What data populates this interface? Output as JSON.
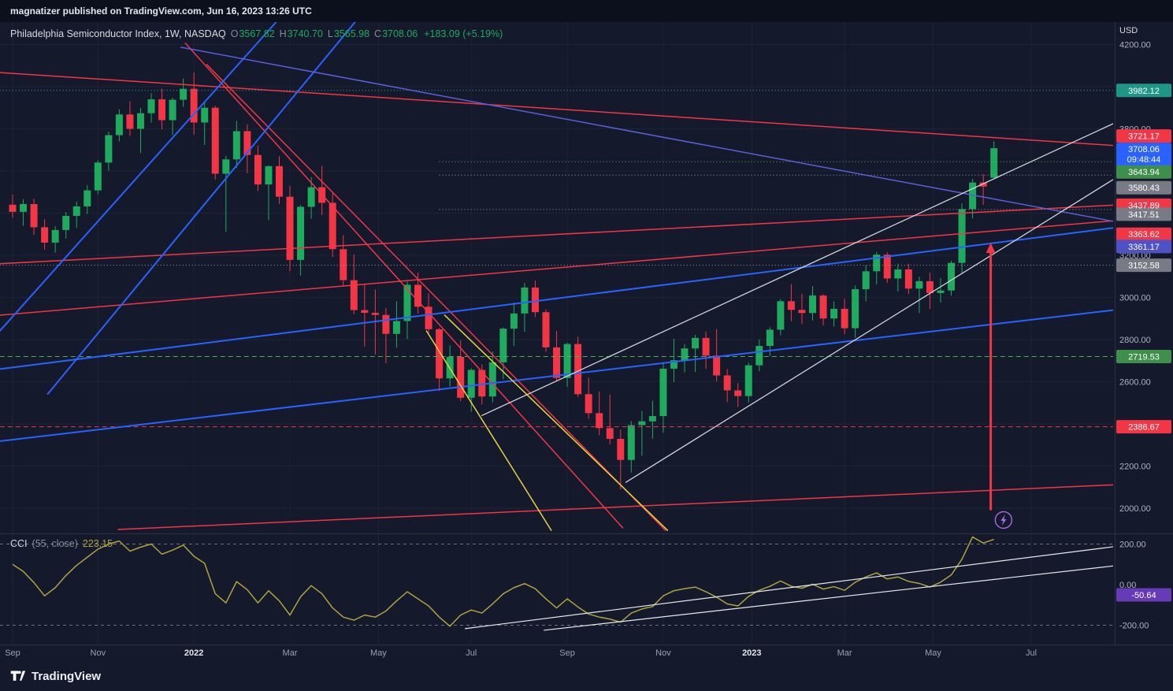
{
  "topbar": {
    "text": "magnatizer published on TradingView.com, Jun 16, 2023 13:26 UTC"
  },
  "legend": {
    "symbol": "Philadelphia Semiconductor Index, 1W, NASDAQ",
    "o_label": "O",
    "h_label": "H",
    "l_label": "L",
    "c_label": "C",
    "open": "3567.82",
    "high": "3740.70",
    "low": "3565.98",
    "close": "3708.06",
    "change": "+183.09 (+5.19%)"
  },
  "cci_legend": {
    "title": "CCI",
    "params": "(55, close)",
    "value": "223.15"
  },
  "axis": {
    "currency": "USD",
    "price_ticks": [
      4200,
      4000,
      3800,
      3600,
      3400,
      3200,
      3000,
      2800,
      2600,
      2400,
      2200,
      2000
    ],
    "time_ticks": [
      {
        "i": 0,
        "label": "Sep"
      },
      {
        "i": 8,
        "label": "Nov"
      },
      {
        "i": 17,
        "label": "2022",
        "year": true
      },
      {
        "i": 26,
        "label": "Mar"
      },
      {
        "i": 34.3,
        "label": "May"
      },
      {
        "i": 43,
        "label": "Jul"
      },
      {
        "i": 52,
        "label": "Sep"
      },
      {
        "i": 61,
        "label": "Nov"
      },
      {
        "i": 69.3,
        "label": "2023",
        "year": true
      },
      {
        "i": 78,
        "label": "Mar"
      },
      {
        "i": 86.3,
        "label": "May"
      },
      {
        "i": 95.5,
        "label": "Jul"
      }
    ],
    "cci_ticks": [
      {
        "v": 200,
        "label": "200.00"
      },
      {
        "v": 0,
        "label": "0.00"
      },
      {
        "v": -200,
        "label": "-200.00"
      }
    ]
  },
  "badges": [
    {
      "text": "3982.12",
      "price": 3982.12,
      "bg": "#1e9688"
    },
    {
      "text": "3721.17",
      "price": 3721.17,
      "bg": "#f23645",
      "dy": -12
    },
    {
      "text": "3708.06",
      "price": 3708.06,
      "bg": "#2962ff",
      "dy": 8,
      "sub": "09:48:44"
    },
    {
      "text": "3643.94",
      "price": 3643.94,
      "bg": "#3e8e4c",
      "dy": 13
    },
    {
      "text": "3580.43",
      "price": 3580.43,
      "bg": "#787b86",
      "dy": 16
    },
    {
      "text": "3437.89",
      "price": 3437.89,
      "bg": "#f23645",
      "dy": 0
    },
    {
      "text": "3417.51",
      "price": 3417.51,
      "bg": "#787b86",
      "dy": 6
    },
    {
      "text": "3363.62",
      "price": 3363.62,
      "bg": "#f23645",
      "dy": 17
    },
    {
      "text": "3361.17",
      "price": 3361.17,
      "bg": "#4f52c5",
      "dy": 32
    },
    {
      "text": "3152.58",
      "price": 3152.58,
      "bg": "#787b86",
      "dy": 0
    },
    {
      "text": "2719.53",
      "price": 2719.53,
      "bg": "#3e8e4c",
      "dy": 0
    },
    {
      "text": "2386.67",
      "price": 2386.67,
      "bg": "#f23645",
      "dy": 0
    }
  ],
  "cci_badge": {
    "text": "-50.64",
    "value": -50.64,
    "bg": "#673ab7"
  },
  "colors": {
    "bg": "#141a2b",
    "grid": "#1d2435",
    "separator": "#2a2f42",
    "axis_text": "#aeb2bd",
    "up": "#1faa5e",
    "down": "#f23645",
    "blue_line": "#2962ff",
    "red_line": "#f23645",
    "yellow_line": "#e8d33f",
    "white_line": "#d1d4dc",
    "purple_line": "#5a5fd8",
    "teal_level": "#26b0a2",
    "green_level": "#4caf50",
    "gray_level": "#9aa0ab",
    "cci_line": "#b0a23e",
    "cci_band": "#c9cbd3",
    "arrow": "#f23645",
    "zap": "#a86be0"
  },
  "footer": {
    "brand": "TradingView"
  },
  "chart_data": {
    "type": "candlestick",
    "title": "Philadelphia Semiconductor Index, 1W, NASDAQ",
    "timeframe": "1W",
    "currency": "USD",
    "last_bar": {
      "open": 3567.82,
      "high": 3740.7,
      "low": 3565.98,
      "close": 3708.06,
      "change": "+183.09 (+5.19%)"
    },
    "ylim": [
      1950,
      4300
    ],
    "grid": true,
    "candles": [
      [
        3440,
        3489,
        3377,
        3406
      ],
      [
        3406,
        3466,
        3340,
        3443
      ],
      [
        3443,
        3468,
        3297,
        3333
      ],
      [
        3333,
        3372,
        3227,
        3260
      ],
      [
        3260,
        3338,
        3212,
        3320
      ],
      [
        3320,
        3405,
        3279,
        3387
      ],
      [
        3387,
        3455,
        3330,
        3432
      ],
      [
        3432,
        3533,
        3396,
        3508
      ],
      [
        3508,
        3651,
        3490,
        3640
      ],
      [
        3640,
        3786,
        3601,
        3770
      ],
      [
        3770,
        3893,
        3740,
        3868
      ],
      [
        3868,
        3931,
        3766,
        3800
      ],
      [
        3800,
        3899,
        3685,
        3874
      ],
      [
        3874,
        3969,
        3830,
        3940
      ],
      [
        3940,
        3991,
        3797,
        3841
      ],
      [
        3841,
        3948,
        3770,
        3938
      ],
      [
        3938,
        4039,
        3905,
        3990
      ],
      [
        3990,
        4068,
        3772,
        3830
      ],
      [
        3830,
        3931,
        3724,
        3900
      ],
      [
        3900,
        3910,
        3559,
        3587
      ],
      [
        3587,
        3672,
        3311,
        3655
      ],
      [
        3655,
        3838,
        3614,
        3789
      ],
      [
        3789,
        3821,
        3589,
        3676
      ],
      [
        3676,
        3721,
        3505,
        3536
      ],
      [
        3536,
        3626,
        3367,
        3623
      ],
      [
        3623,
        3670,
        3444,
        3478
      ],
      [
        3478,
        3529,
        3124,
        3178
      ],
      [
        3178,
        3438,
        3104,
        3430
      ],
      [
        3430,
        3571,
        3373,
        3523
      ],
      [
        3523,
        3624,
        3391,
        3449
      ],
      [
        3449,
        3496,
        3192,
        3229
      ],
      [
        3229,
        3295,
        3052,
        3082
      ],
      [
        3082,
        3204,
        2920,
        2940
      ],
      [
        2940,
        3061,
        2766,
        2927
      ],
      [
        2927,
        3038,
        2729,
        2917
      ],
      [
        2917,
        2950,
        2688,
        2827
      ],
      [
        2827,
        2982,
        2762,
        2888
      ],
      [
        2888,
        3076,
        2802,
        3060
      ],
      [
        3060,
        3118,
        2924,
        2956
      ],
      [
        2956,
        3019,
        2830,
        2849
      ],
      [
        2849,
        2855,
        2556,
        2616
      ],
      [
        2616,
        2772,
        2577,
        2718
      ],
      [
        2718,
        2796,
        2508,
        2524
      ],
      [
        2524,
        2664,
        2458,
        2656
      ],
      [
        2656,
        2682,
        2492,
        2530
      ],
      [
        2530,
        2744,
        2502,
        2692
      ],
      [
        2692,
        2857,
        2612,
        2852
      ],
      [
        2852,
        2976,
        2769,
        2924
      ],
      [
        2924,
        3069,
        2837,
        3047
      ],
      [
        3047,
        3080,
        2907,
        2930
      ],
      [
        2930,
        2943,
        2741,
        2763
      ],
      [
        2763,
        2841,
        2602,
        2618
      ],
      [
        2618,
        2786,
        2576,
        2779
      ],
      [
        2779,
        2814,
        2527,
        2541
      ],
      [
        2541,
        2619,
        2424,
        2451
      ],
      [
        2451,
        2554,
        2346,
        2380
      ],
      [
        2380,
        2539,
        2302,
        2329
      ],
      [
        2329,
        2373,
        2089,
        2229
      ],
      [
        2229,
        2414,
        2169,
        2394
      ],
      [
        2394,
        2461,
        2249,
        2412
      ],
      [
        2412,
        2510,
        2329,
        2437
      ],
      [
        2437,
        2692,
        2358,
        2662
      ],
      [
        2662,
        2804,
        2598,
        2702
      ],
      [
        2702,
        2779,
        2644,
        2758
      ],
      [
        2758,
        2822,
        2646,
        2808
      ],
      [
        2808,
        2838,
        2661,
        2724
      ],
      [
        2724,
        2850,
        2601,
        2630
      ],
      [
        2630,
        2660,
        2503,
        2559
      ],
      [
        2559,
        2593,
        2480,
        2532
      ],
      [
        2532,
        2690,
        2501,
        2678
      ],
      [
        2678,
        2801,
        2650,
        2770
      ],
      [
        2770,
        2858,
        2722,
        2847
      ],
      [
        2847,
        2992,
        2820,
        2982
      ],
      [
        2982,
        3063,
        2887,
        2941
      ],
      [
        2941,
        3017,
        2874,
        2926
      ],
      [
        2926,
        3054,
        2890,
        3009
      ],
      [
        3009,
        3015,
        2867,
        2900
      ],
      [
        2900,
        2981,
        2862,
        2946
      ],
      [
        2946,
        2994,
        2826,
        2854
      ],
      [
        2854,
        3057,
        2809,
        3039
      ],
      [
        3039,
        3152,
        2982,
        3124
      ],
      [
        3124,
        3216,
        3062,
        3203
      ],
      [
        3203,
        3214,
        3069,
        3090
      ],
      [
        3090,
        3160,
        3028,
        3133
      ],
      [
        3133,
        3160,
        3017,
        3042
      ],
      [
        3042,
        3098,
        2926,
        3077
      ],
      [
        3077,
        3118,
        2945,
        3021
      ],
      [
        3021,
        3091,
        2976,
        3033
      ],
      [
        3033,
        3174,
        3008,
        3164
      ],
      [
        3164,
        3446,
        3112,
        3419
      ],
      [
        3419,
        3562,
        3375,
        3545
      ],
      [
        3545,
        3584,
        3440,
        3526
      ],
      [
        3567.82,
        3740.7,
        3565.98,
        3708.06
      ]
    ],
    "levels": [
      {
        "price": 3982.12,
        "color": "#26b0a2",
        "dash": "1,3",
        "from": -1.2
      },
      {
        "price": 3643.94,
        "color": "#4caf50",
        "dash": "1,3",
        "from": 40
      },
      {
        "price": 3580.43,
        "color": "#9aa0ab",
        "dash": "1,3",
        "from": 40
      },
      {
        "price": 3417.51,
        "color": "#9aa0ab",
        "dash": "1,3",
        "from": 40
      },
      {
        "price": 3152.58,
        "color": "#9aa0ab",
        "dash": "1,3",
        "from": -1.2
      },
      {
        "price": 2719.53,
        "color": "#4caf50",
        "dash": "6,4",
        "from": -1.2
      },
      {
        "price": 2386.67,
        "color": "#f23645",
        "dash": "6,4",
        "from": -1.2
      }
    ],
    "trendlines": [
      {
        "i1": -1.2,
        "p1": 4067,
        "i2": 103.2,
        "p2": 3721.17,
        "color": "#f23645",
        "w": 1.5
      },
      {
        "i1": -1.2,
        "p1": 3160,
        "i2": 103.2,
        "p2": 3437.89,
        "color": "#f23645",
        "w": 1.5
      },
      {
        "i1": -1.2,
        "p1": 2916,
        "i2": 103.2,
        "p2": 3363.62,
        "color": "#f23645",
        "w": 1.5
      },
      {
        "i1": 16.2,
        "p1": 4206,
        "i2": 57.2,
        "p2": 1907,
        "color": "#f23645",
        "w": 1.5
      },
      {
        "i1": 18.2,
        "p1": 4105,
        "i2": 61.2,
        "p2": 1895,
        "color": "#f23645",
        "w": 1.5
      },
      {
        "i1": 9.9,
        "p1": 1899,
        "i2": 103.2,
        "p2": 2111,
        "color": "#f23645",
        "w": 1.5
      },
      {
        "i1": -1.2,
        "p1": 2841,
        "i2": 24.7,
        "p2": 4306,
        "color": "#2962ff",
        "w": 2
      },
      {
        "i1": 3.3,
        "p1": 2542,
        "i2": 32.1,
        "p2": 4306,
        "color": "#2962ff",
        "w": 2
      },
      {
        "i1": -1.2,
        "p1": 2660,
        "i2": 103.2,
        "p2": 3330,
        "color": "#2962ff",
        "w": 2
      },
      {
        "i1": -1.2,
        "p1": 2318,
        "i2": 103.2,
        "p2": 2940,
        "color": "#2962ff",
        "w": 2
      },
      {
        "i1": 15.8,
        "p1": 4187,
        "i2": 103.2,
        "p2": 3361.17,
        "color": "#5a5fd8",
        "w": 1.5
      },
      {
        "i1": 44,
        "p1": 2440,
        "i2": 105.9,
        "p2": 3888,
        "color": "#d1d4dc",
        "w": 1.3
      },
      {
        "i1": 57.5,
        "p1": 2123,
        "i2": 105.9,
        "p2": 3645,
        "color": "#d1d4dc",
        "w": 1.3
      },
      {
        "i1": 38.8,
        "p1": 2841,
        "i2": 50.5,
        "p2": 1895,
        "color": "#e8d33f",
        "w": 1.5
      },
      {
        "i1": 40.5,
        "p1": 2916,
        "i2": 61.4,
        "p2": 1895,
        "color": "#e8d33f",
        "w": 1.5
      }
    ],
    "annotations": {
      "arrow": {
        "i": 91.7,
        "price_from": 1990,
        "price_to": 3252,
        "color": "#f23645"
      },
      "zap": {
        "i": 92.9,
        "price": 1944,
        "color": "#a86be0"
      }
    },
    "cci": {
      "period": "(55, close)",
      "current": 223.15,
      "bands": [
        200,
        -200
      ],
      "series": [
        100,
        65,
        10,
        -55,
        -15,
        45,
        95,
        135,
        175,
        200,
        215,
        165,
        185,
        200,
        150,
        170,
        195,
        140,
        105,
        -45,
        -90,
        15,
        -25,
        -90,
        -30,
        -80,
        -150,
        -60,
        -5,
        -45,
        -115,
        -160,
        -175,
        -150,
        -160,
        -130,
        -80,
        -35,
        -70,
        -105,
        -160,
        -205,
        -150,
        -125,
        -140,
        -95,
        -45,
        -15,
        5,
        -20,
        -70,
        -115,
        -70,
        -110,
        -145,
        -160,
        -170,
        -185,
        -140,
        -120,
        -108,
        -55,
        -30,
        -20,
        -12,
        -35,
        -62,
        -95,
        -105,
        -58,
        -28,
        -8,
        18,
        -8,
        -18,
        2,
        -22,
        -10,
        -28,
        12,
        38,
        58,
        28,
        38,
        16,
        6,
        -12,
        12,
        48,
        125,
        235,
        205,
        223.15
      ],
      "trendlines": [
        {
          "i1": 42.4,
          "v1": -217,
          "i2": 106.7,
          "v2": 210,
          "color": "#e8e9ed",
          "w": 1.2
        },
        {
          "i1": 49.8,
          "v1": -225,
          "i2": 106.7,
          "v2": 113,
          "color": "#e8e9ed",
          "w": 1.2
        }
      ]
    }
  }
}
